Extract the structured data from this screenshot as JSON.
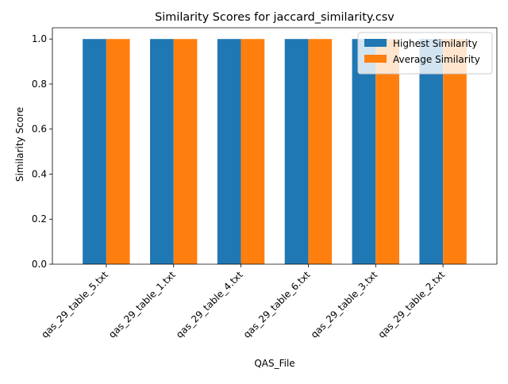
{
  "chart_data": {
    "type": "bar",
    "title": "Similarity Scores for jaccard_similarity.csv",
    "xlabel": "QAS_File",
    "ylabel": "Similarity Score",
    "categories": [
      "qas_29_table_5.txt",
      "qas_29_table_1.txt",
      "qas_29_table_4.txt",
      "qas_29_table_6.txt",
      "qas_29_table_3.txt",
      "qas_29_table_2.txt"
    ],
    "series": [
      {
        "name": "Highest Similarity",
        "color": "#1f77b4",
        "values": [
          1.0,
          1.0,
          1.0,
          1.0,
          1.0,
          1.0
        ]
      },
      {
        "name": "Average Similarity",
        "color": "#ff7f0e",
        "values": [
          1.0,
          1.0,
          1.0,
          1.0,
          1.0,
          1.0
        ]
      }
    ],
    "ylim": [
      0,
      1.05
    ],
    "yticks": [
      "0.0",
      "0.2",
      "0.4",
      "0.6",
      "0.8",
      "1.0"
    ],
    "grid": false,
    "legend_position": "top-right"
  }
}
